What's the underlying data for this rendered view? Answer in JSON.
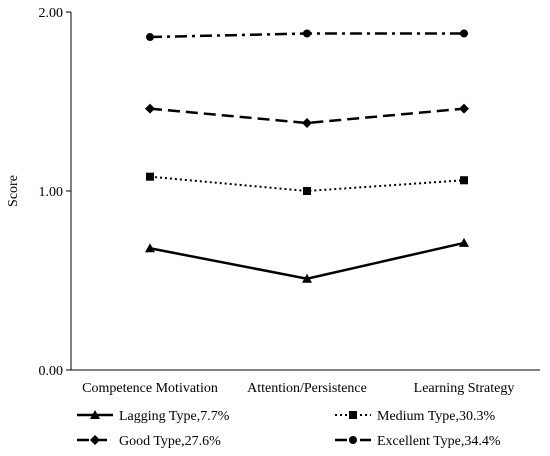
{
  "chart_data": {
    "type": "line",
    "title": "",
    "xlabel": "",
    "ylabel": "Score",
    "ylim": [
      0,
      2
    ],
    "yticks": [
      "0.00",
      "1.00",
      "2.00"
    ],
    "categories": [
      "Competence Motivation",
      "Attention/Persistence",
      "Learning Strategy"
    ],
    "grid": false,
    "legend_position": "bottom",
    "series": [
      {
        "name": "Lagging Type,7.7%",
        "values": [
          0.68,
          0.51,
          0.71
        ],
        "line_style": "solid",
        "marker": "triangle",
        "color": "#000000"
      },
      {
        "name": "Medium Type,30.3%",
        "values": [
          1.08,
          1.0,
          1.06
        ],
        "line_style": "dotted",
        "marker": "square",
        "color": "#000000"
      },
      {
        "name": "Good Type,27.6%",
        "values": [
          1.46,
          1.38,
          1.46
        ],
        "line_style": "dashed",
        "marker": "diamond",
        "color": "#000000"
      },
      {
        "name": "Excellent Type,34.4%",
        "values": [
          1.86,
          1.88,
          1.88
        ],
        "line_style": "dash-dot",
        "marker": "circle",
        "color": "#000000"
      }
    ]
  }
}
